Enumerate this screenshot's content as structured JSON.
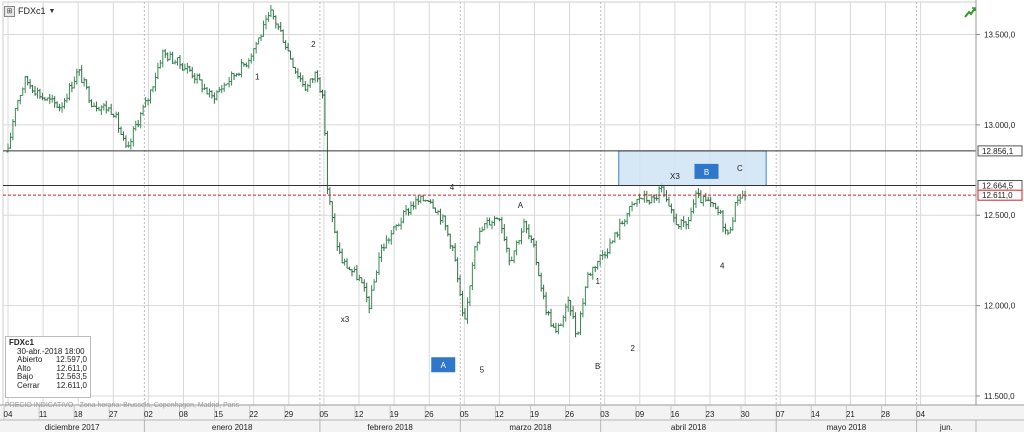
{
  "instrument": {
    "symbol": "FDXc1",
    "menu_caret": "▼",
    "icon_glyph": "⊞"
  },
  "info_panel": {
    "title": "FDXc1",
    "datetime": "30-abr.-2018 18:00",
    "rows": [
      {
        "label": "Abierto",
        "value": "12.597,0"
      },
      {
        "label": "Alto",
        "value": "12.611,0"
      },
      {
        "label": "Bajo",
        "value": "12.563,5"
      },
      {
        "label": "Cerrar",
        "value": "12.611,0"
      }
    ]
  },
  "source_note": "PRECIO INDICATIVO - Zona horaria: Brussels, Copenhagen, Madrid, Paris",
  "colors": {
    "bull": "#3a8a55",
    "bear": "#2e6f45",
    "grid": "#d9d9d9",
    "dotted": "#bdbdbd",
    "zone_fill": "#cfe3f5",
    "zone_stroke": "#3e85c4",
    "label_box": "#3077c9",
    "current_line": "#d02020",
    "axis_text": "#222222"
  },
  "icons": {
    "trend": "trend-up-icon",
    "symbol": "chart-icon"
  },
  "chart_data": {
    "type": "ohlc",
    "ylim": [
      11450,
      13680
    ],
    "y_ticks": [
      {
        "value": 13500,
        "label": "13.500,0"
      },
      {
        "value": 13000,
        "label": "13.000,0"
      },
      {
        "value": 12500,
        "label": "12.500,0"
      },
      {
        "value": 12000,
        "label": "12.000,0"
      },
      {
        "value": 11500,
        "label": "11.500,0"
      }
    ],
    "price_lines": [
      {
        "value": 12856.1,
        "label": "12.856,1",
        "style": "solid",
        "color": "#333333"
      },
      {
        "value": 12664.5,
        "label": "12.664,5",
        "style": "solid",
        "color": "#333333"
      },
      {
        "value": 12611.0,
        "label": "12.611,0",
        "style": "dashed",
        "color": "#d02020"
      }
    ],
    "x_days": [
      "04",
      "11",
      "18",
      "27",
      "02",
      "08",
      "15",
      "22",
      "29",
      "05",
      "12",
      "19",
      "26",
      "05",
      "12",
      "19",
      "26",
      "03",
      "09",
      "16",
      "23",
      "30",
      "07",
      "14",
      "21",
      "28",
      "04"
    ],
    "x_months": [
      {
        "label": "diciembre 2017",
        "span": [
          0,
          4
        ]
      },
      {
        "label": "enero 2018",
        "span": [
          4,
          9
        ]
      },
      {
        "label": "febrero 2018",
        "span": [
          9,
          13
        ]
      },
      {
        "label": "marzo 2018",
        "span": [
          13,
          17
        ]
      },
      {
        "label": "abril 2018",
        "span": [
          17,
          22
        ]
      },
      {
        "label": "mayo 2018",
        "span": [
          22,
          26
        ]
      },
      {
        "label": "jun.",
        "span": [
          26,
          27
        ]
      }
    ],
    "path": [
      [
        0,
        12850
      ],
      [
        0.2,
        13100
      ],
      [
        0.5,
        13250
      ],
      [
        1,
        13150
      ],
      [
        1.5,
        13100
      ],
      [
        2,
        13300
      ],
      [
        2.4,
        13120
      ],
      [
        3,
        13080
      ],
      [
        3.4,
        12840
      ],
      [
        3.6,
        12980
      ],
      [
        4,
        13150
      ],
      [
        4.4,
        13400
      ],
      [
        4.8,
        13350
      ],
      [
        5.2,
        13300
      ],
      [
        5.8,
        13150
      ],
      [
        6.3,
        13250
      ],
      [
        6.8,
        13350
      ],
      [
        7.2,
        13500
      ],
      [
        7.5,
        13620
      ],
      [
        7.8,
        13500
      ],
      [
        8.2,
        13300
      ],
      [
        8.5,
        13200
      ],
      [
        8.8,
        13300
      ],
      [
        9.0,
        13100
      ],
      [
        9.1,
        12650
      ],
      [
        9.3,
        12400
      ],
      [
        9.5,
        12250
      ],
      [
        10.0,
        12150
      ],
      [
        10.3,
        12000
      ],
      [
        10.6,
        12300
      ],
      [
        11.0,
        12420
      ],
      [
        11.5,
        12560
      ],
      [
        12.0,
        12600
      ],
      [
        12.4,
        12470
      ],
      [
        12.7,
        12300
      ],
      [
        13.0,
        11870
      ],
      [
        13.3,
        12350
      ],
      [
        13.6,
        12450
      ],
      [
        14.0,
        12500
      ],
      [
        14.3,
        12250
      ],
      [
        14.7,
        12450
      ],
      [
        15.0,
        12300
      ],
      [
        15.3,
        12000
      ],
      [
        15.6,
        11840
      ],
      [
        16.0,
        12020
      ],
      [
        16.2,
        11830
      ],
      [
        16.5,
        12160
      ],
      [
        16.8,
        12250
      ],
      [
        17.2,
        12350
      ],
      [
        17.6,
        12500
      ],
      [
        18.0,
        12600
      ],
      [
        18.4,
        12580
      ],
      [
        18.6,
        12650
      ],
      [
        18.8,
        12540
      ],
      [
        19.0,
        12470
      ],
      [
        19.3,
        12430
      ],
      [
        19.6,
        12600
      ],
      [
        20.0,
        12560
      ],
      [
        20.3,
        12500
      ],
      [
        20.5,
        12380
      ],
      [
        20.8,
        12610
      ],
      [
        21.0,
        12611
      ]
    ],
    "zone": {
      "x0": 17.4,
      "x1": 21.6,
      "y0": 12664.5,
      "y1": 12856.1
    },
    "wave_labels": [
      {
        "text": "1",
        "x": 7.1,
        "y": 13250
      },
      {
        "text": "2",
        "x": 8.7,
        "y": 13430
      },
      {
        "text": "x3",
        "x": 9.6,
        "y": 11910
      },
      {
        "text": "4",
        "x": 12.65,
        "y": 12640
      },
      {
        "text": "5",
        "x": 13.5,
        "y": 11630
      },
      {
        "text": "A",
        "x": 14.6,
        "y": 12540
      },
      {
        "text": "B",
        "x": 16.8,
        "y": 11650
      },
      {
        "text": "1",
        "x": 16.8,
        "y": 12120
      },
      {
        "text": "2",
        "x": 17.8,
        "y": 11750
      },
      {
        "text": "X3",
        "x": 19.0,
        "y": 12700
      },
      {
        "text": "C",
        "x": 20.85,
        "y": 12745
      },
      {
        "text": "4",
        "x": 20.35,
        "y": 12205
      }
    ],
    "box_labels": [
      {
        "text": "A",
        "x": 12.4,
        "y": 11670
      },
      {
        "text": "B",
        "x": 19.9,
        "y": 12740
      }
    ]
  }
}
